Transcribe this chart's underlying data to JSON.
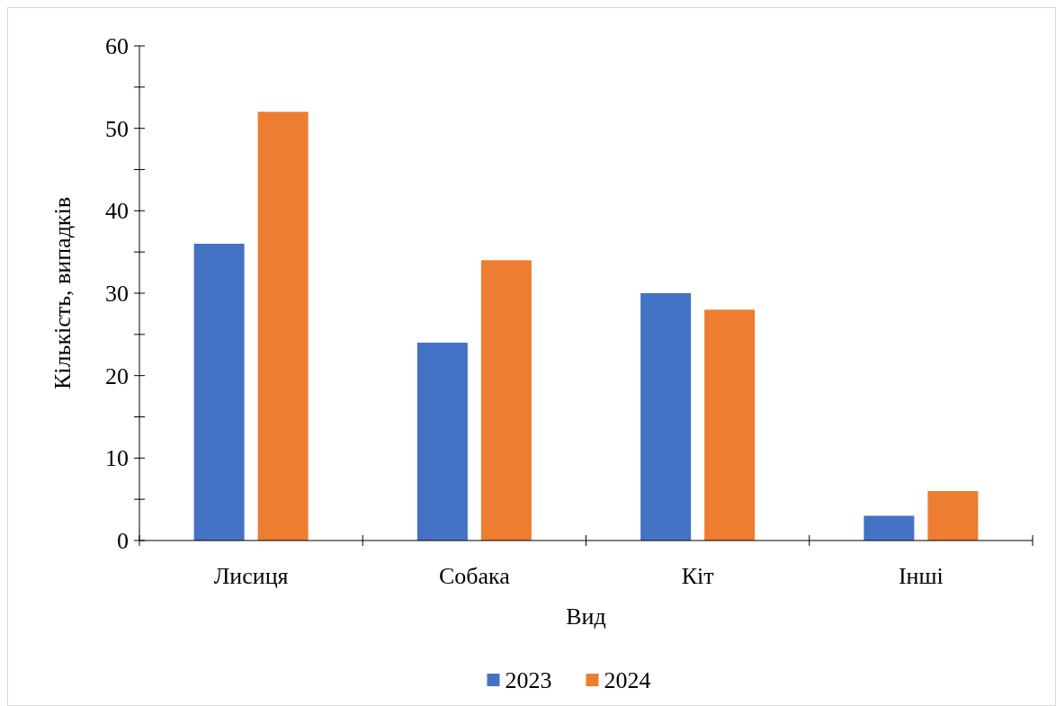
{
  "chart_data": {
    "type": "bar",
    "xlabel": "Вид",
    "ylabel": "Кількість, випадків",
    "categories": [
      "Лисиця",
      "Собака",
      "Кіт",
      "Інші"
    ],
    "series": [
      {
        "name": "2023",
        "color": "#4472c4",
        "values": [
          36,
          24,
          30,
          3
        ]
      },
      {
        "name": "2024",
        "color": "#ed7d31",
        "values": [
          52,
          34,
          28,
          6
        ]
      }
    ],
    "ylim": [
      0,
      60
    ],
    "yticks": [
      0,
      {
        "value": 5,
        "label": null
      },
      10,
      {
        "value": 15,
        "label": null
      },
      20,
      {
        "value": 25,
        "label": null
      },
      30,
      {
        "value": 35,
        "label": null
      },
      40,
      {
        "value": 45,
        "label": null
      },
      50,
      {
        "value": 55,
        "label": null
      },
      60
    ],
    "grid": false,
    "legend": "bottom"
  }
}
